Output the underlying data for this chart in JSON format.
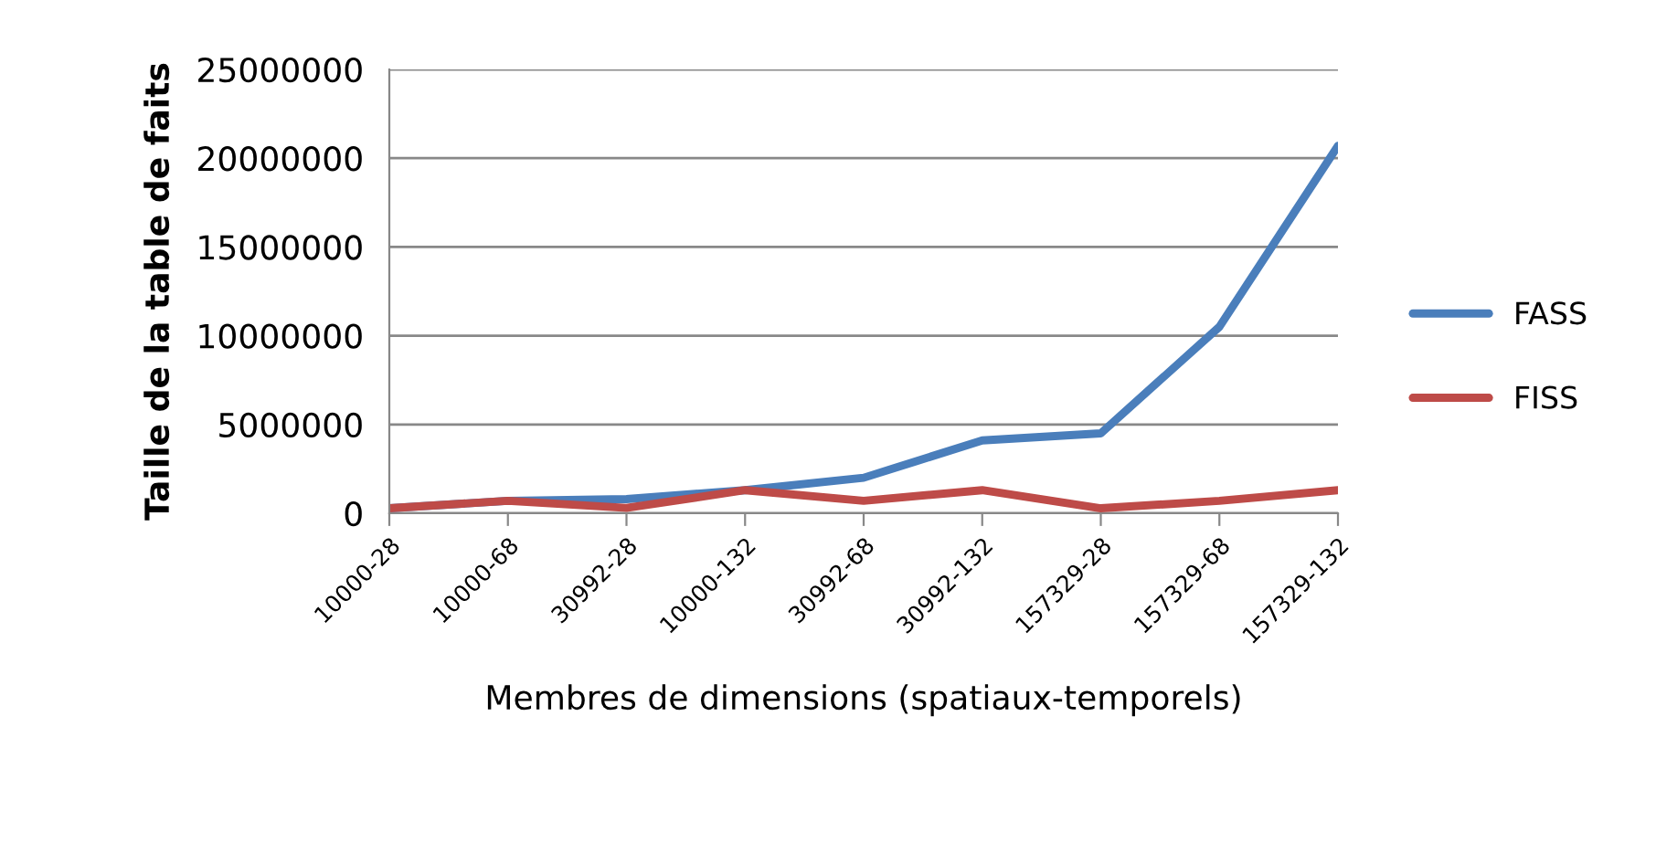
{
  "chart_data": {
    "type": "line",
    "xlabel": "Membres de dimensions (spatiaux-temporels)",
    "ylabel": "Taille de la table de faits",
    "categories": [
      "10000-28",
      "10000-68",
      "30992-28",
      "10000-132",
      "30992-68",
      "30992-132",
      "157329-28",
      "157329-68",
      "157329-132"
    ],
    "series": [
      {
        "name": "FASS",
        "color": "#4a7ebb",
        "values": [
          280000,
          700000,
          800000,
          1300000,
          2000000,
          4100000,
          4500000,
          10500000,
          20700000
        ]
      },
      {
        "name": "FISS",
        "color": "#be4b48",
        "values": [
          280000,
          700000,
          300000,
          1300000,
          700000,
          1300000,
          280000,
          700000,
          1300000
        ]
      }
    ],
    "ylim": [
      0,
      25000000
    ],
    "yticks": [
      0,
      5000000,
      10000000,
      15000000,
      20000000,
      25000000
    ],
    "grid": "y",
    "legend": "right",
    "marker": "none",
    "line_style": "solid"
  }
}
